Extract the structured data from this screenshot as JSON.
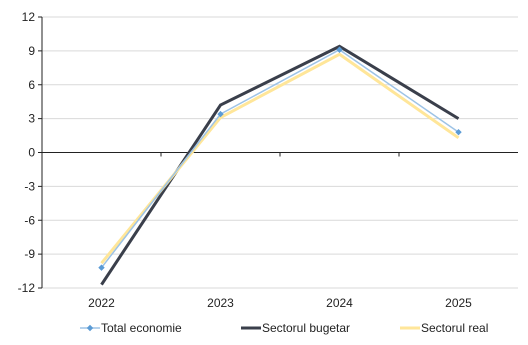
{
  "chart_data": {
    "type": "line",
    "categories": [
      "2022",
      "2023",
      "2024",
      "2025"
    ],
    "series": [
      {
        "name": "Total economie",
        "values": [
          -10.2,
          3.4,
          9.1,
          1.8
        ],
        "color": "#9dc3e6",
        "marker_color": "#5b9bd5",
        "marker": "diamond"
      },
      {
        "name": "Sectorul bugetar",
        "values": [
          -11.7,
          4.2,
          9.4,
          3.0
        ],
        "color": "#3a3f4b",
        "marker": "none"
      },
      {
        "name": "Sectorul real",
        "values": [
          -9.8,
          3.1,
          8.7,
          1.3
        ],
        "color": "#ffe699",
        "marker": "none"
      }
    ],
    "ylim": [
      -12,
      12
    ],
    "yticks": [
      12,
      9,
      6,
      3,
      0,
      -3,
      -6,
      -9,
      -12
    ],
    "grid": "horizontal",
    "legend": "bottom"
  }
}
